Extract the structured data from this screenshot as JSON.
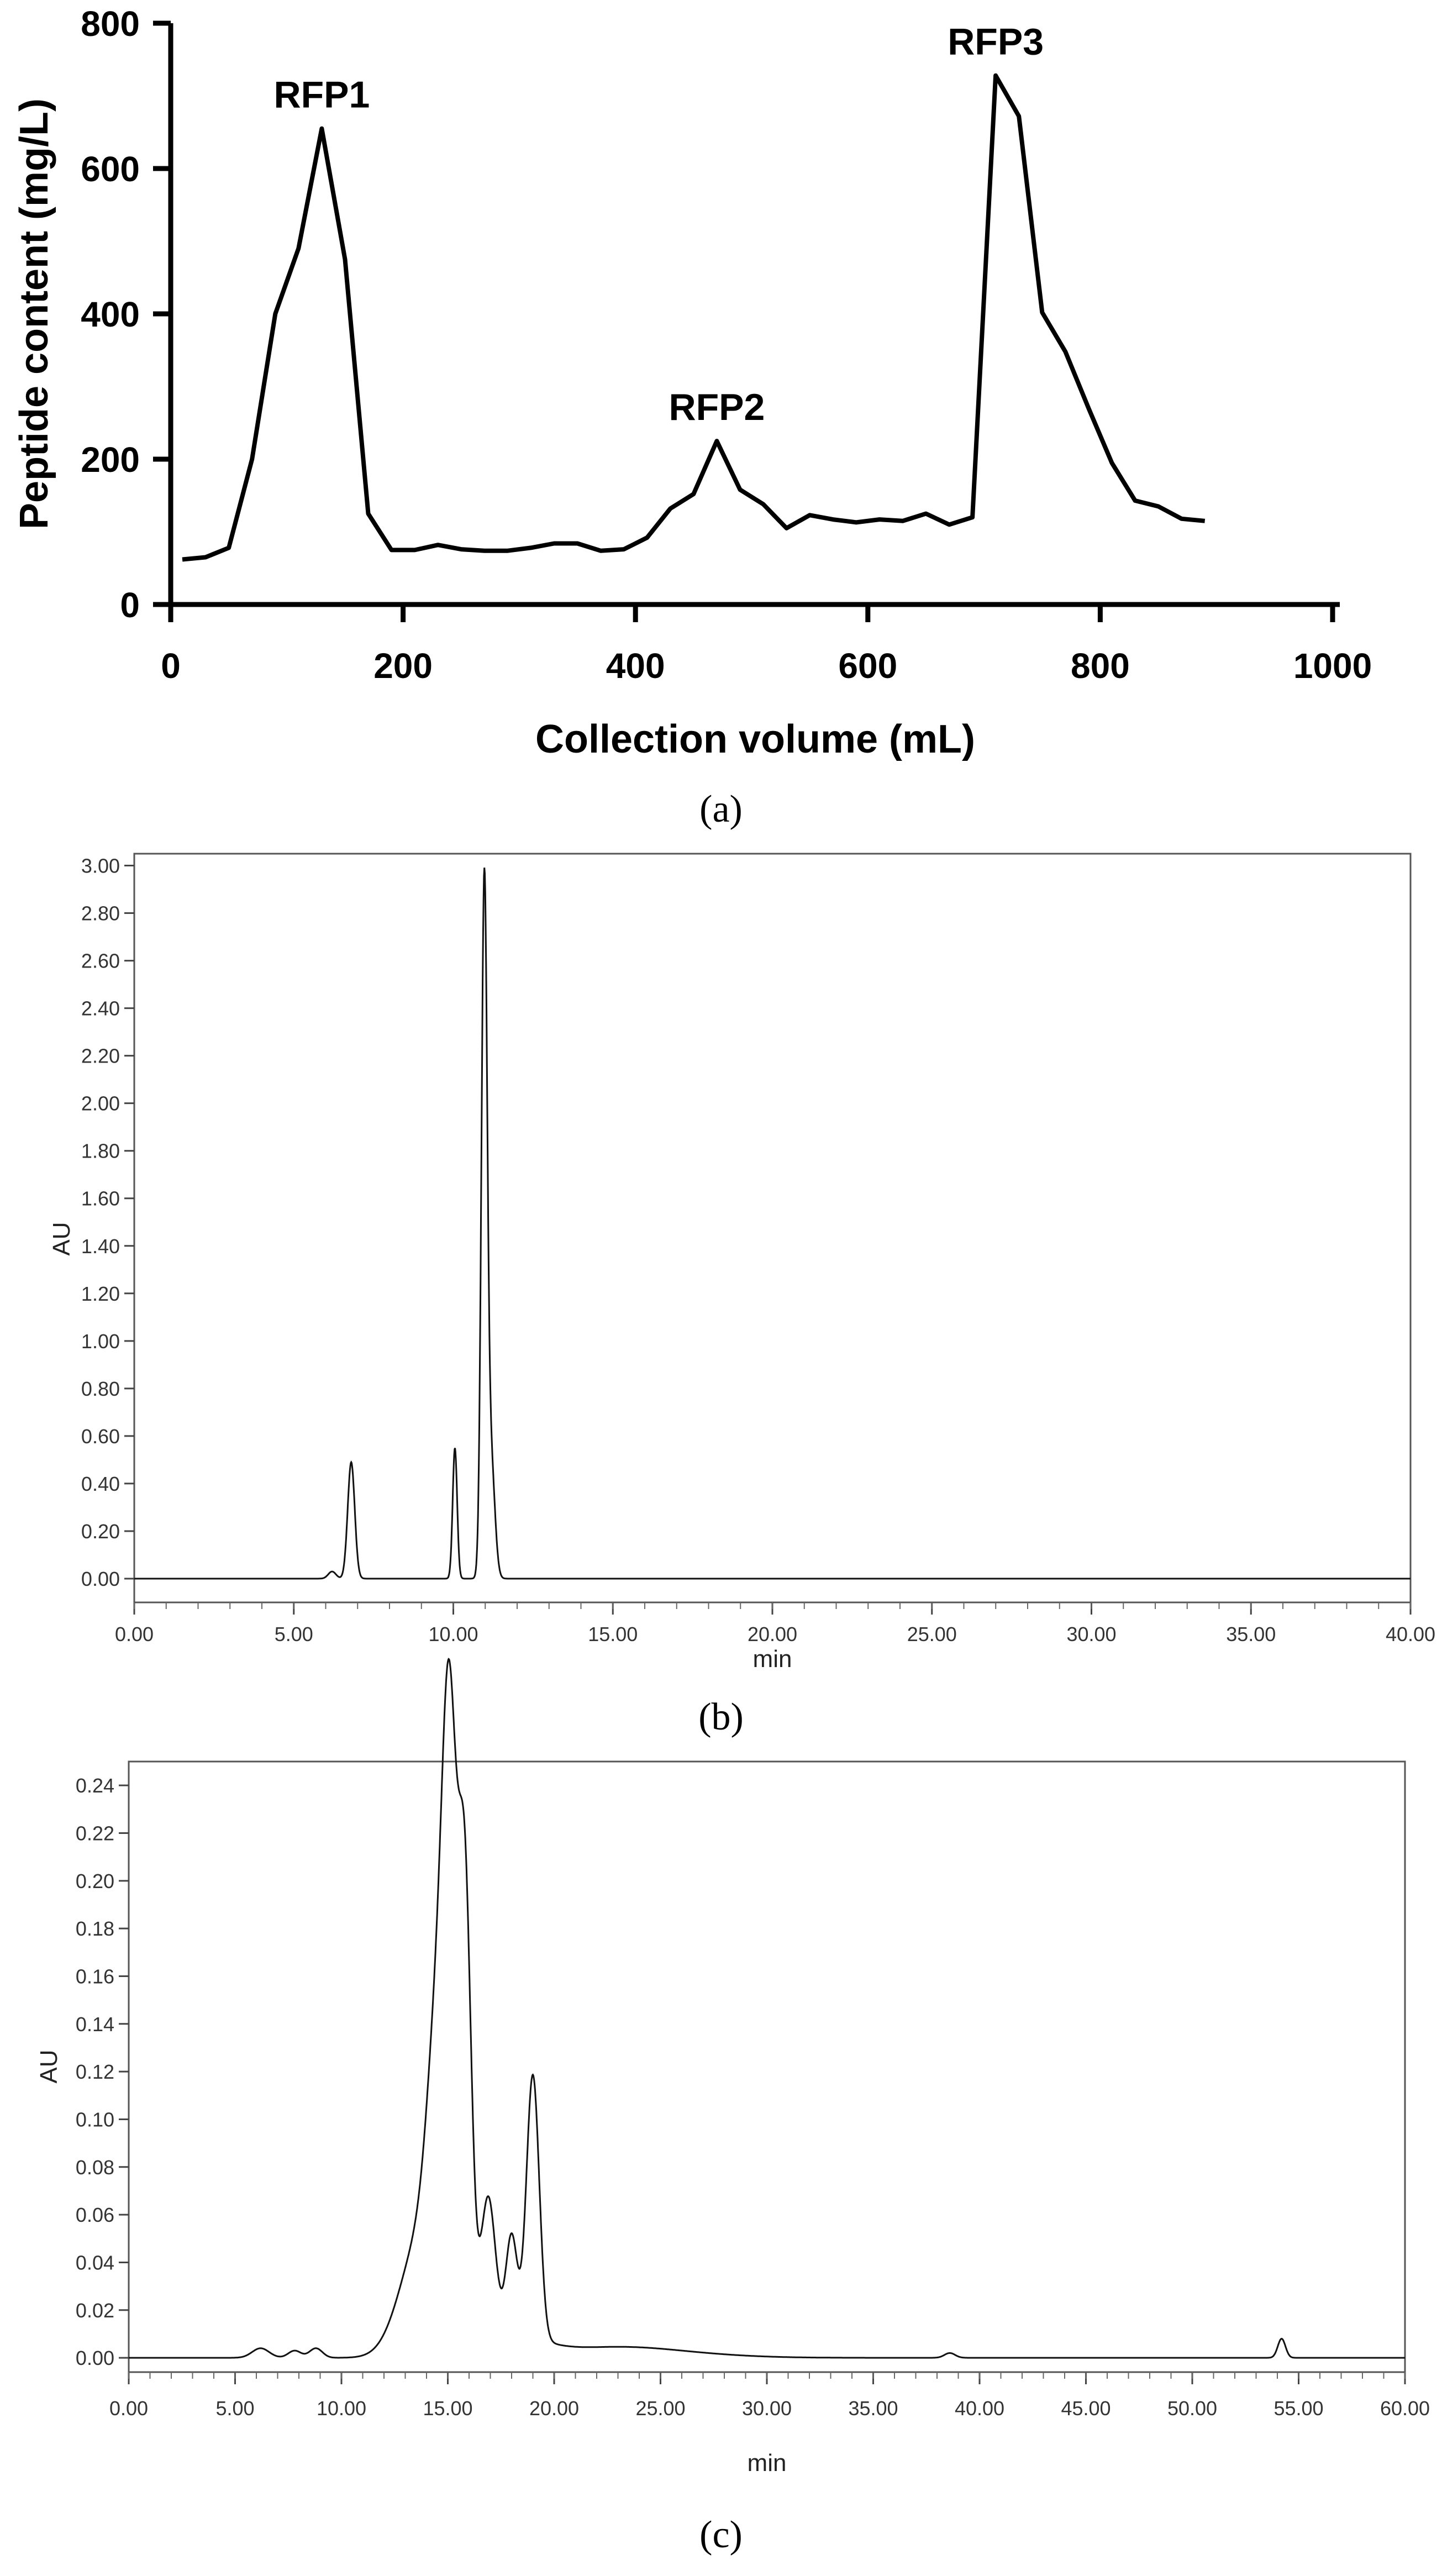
{
  "chart_data": [
    {
      "panel_label": "(a)",
      "type": "line",
      "xlabel": "Collection volume (mL)",
      "ylabel": "Peptide content (mg/L)",
      "xlim": [
        0,
        1000
      ],
      "ylim": [
        0,
        800
      ],
      "xticks": [
        0,
        200,
        400,
        600,
        800,
        1000
      ],
      "yticks": [
        0,
        200,
        400,
        600,
        800
      ],
      "x": [
        10,
        30,
        50,
        70,
        90,
        110,
        130,
        150,
        170,
        190,
        210,
        230,
        250,
        270,
        290,
        310,
        330,
        350,
        370,
        390,
        410,
        430,
        450,
        470,
        490,
        510,
        530,
        550,
        570,
        590,
        610,
        630,
        650,
        670,
        690,
        710,
        730,
        750,
        770,
        790,
        810,
        830,
        850,
        870,
        890
      ],
      "y": [
        62,
        65,
        78,
        200,
        400,
        490,
        655,
        475,
        125,
        75,
        75,
        82,
        76,
        74,
        74,
        78,
        84,
        84,
        74,
        76,
        92,
        132,
        152,
        225,
        158,
        138,
        105,
        123,
        117,
        113,
        117,
        115,
        125,
        110,
        120,
        728,
        672,
        402,
        348,
        270,
        195,
        143,
        135,
        118,
        115
      ],
      "annotations": [
        {
          "text": "RFP1",
          "x": 130,
          "y": 655
        },
        {
          "text": "RFP2",
          "x": 470,
          "y": 225
        },
        {
          "text": "RFP3",
          "x": 710,
          "y": 728
        }
      ]
    },
    {
      "panel_label": "(b)",
      "type": "line",
      "xlabel": "min",
      "ylabel": "AU",
      "xlim": [
        0,
        40
      ],
      "ylim": [
        -0.1,
        3.05
      ],
      "xticks": [
        "0.00",
        "5.00",
        "10.00",
        "15.00",
        "20.00",
        "25.00",
        "30.00",
        "35.00",
        "40.00"
      ],
      "yticks": [
        "0.00",
        "0.20",
        "0.40",
        "0.60",
        "0.80",
        "1.00",
        "1.20",
        "1.40",
        "1.60",
        "1.80",
        "2.00",
        "2.20",
        "2.40",
        "2.60",
        "2.80",
        "3.00"
      ],
      "baseline": 0.0,
      "peaks": [
        {
          "rt": 6.2,
          "height": 0.03,
          "width": 0.12
        },
        {
          "rt": 6.8,
          "height": 0.49,
          "width": 0.11
        },
        {
          "rt": 10.05,
          "height": 0.55,
          "width": 0.07
        },
        {
          "rt": 10.97,
          "height": 2.88,
          "width": 0.09
        },
        {
          "rt": 11.18,
          "height": 0.5,
          "width": 0.12
        }
      ]
    },
    {
      "panel_label": "(c)",
      "type": "line",
      "xlabel": "min",
      "ylabel": "AU",
      "xlim": [
        0,
        60
      ],
      "ylim": [
        -0.006,
        0.25
      ],
      "xticks": [
        "0.00",
        "5.00",
        "10.00",
        "15.00",
        "20.00",
        "25.00",
        "30.00",
        "35.00",
        "40.00",
        "45.00",
        "50.00",
        "55.00",
        "60.00"
      ],
      "yticks": [
        "0.00",
        "0.02",
        "0.04",
        "0.06",
        "0.08",
        "0.10",
        "0.12",
        "0.14",
        "0.16",
        "0.18",
        "0.20",
        "0.22",
        "0.24"
      ],
      "baseline": 0.0,
      "peaks": [
        {
          "rt": 6.2,
          "height": 0.004,
          "width": 0.4
        },
        {
          "rt": 7.8,
          "height": 0.003,
          "width": 0.3
        },
        {
          "rt": 8.8,
          "height": 0.004,
          "width": 0.3
        },
        {
          "rt": 13.8,
          "height": 0.05,
          "width": 1.0
        },
        {
          "rt": 14.6,
          "height": 0.11,
          "width": 0.5
        },
        {
          "rt": 15.1,
          "height": 0.185,
          "width": 0.33
        },
        {
          "rt": 15.8,
          "height": 0.18,
          "width": 0.3
        },
        {
          "rt": 16.9,
          "height": 0.055,
          "width": 0.33
        },
        {
          "rt": 18.0,
          "height": 0.04,
          "width": 0.26
        },
        {
          "rt": 19.0,
          "height": 0.11,
          "width": 0.3
        },
        {
          "rt": 17.2,
          "height": 0.012,
          "width": 1.8
        },
        {
          "rt": 22.5,
          "height": 0.003,
          "width": 2.5
        },
        {
          "rt": 25.0,
          "height": 0.002,
          "width": 3.0
        },
        {
          "rt": 38.6,
          "height": 0.002,
          "width": 0.25
        },
        {
          "rt": 54.2,
          "height": 0.008,
          "width": 0.18
        }
      ]
    }
  ]
}
